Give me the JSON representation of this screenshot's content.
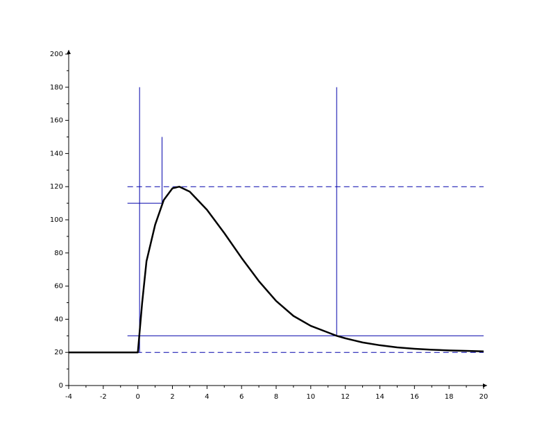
{
  "chart_data": {
    "type": "line",
    "x": [
      -4,
      -2,
      0,
      0.25,
      0.5,
      1,
      1.5,
      2,
      2.4,
      3,
      4,
      5,
      6,
      7,
      8,
      9,
      10,
      11,
      11.5,
      12,
      13,
      14,
      15,
      16,
      17,
      18,
      19,
      20
    ],
    "series": [
      {
        "color": "#000000",
        "values": [
          20,
          20,
          20,
          50,
          75,
          97,
          112,
          119,
          120,
          117,
          106,
          92,
          77,
          63,
          51,
          42,
          36,
          32,
          30,
          28.5,
          26,
          24.3,
          23,
          22.2,
          21.6,
          21.2,
          20.9,
          20.6
        ]
      }
    ],
    "xlim": [
      -4,
      20
    ],
    "xticks": [
      -4,
      -2,
      0,
      2,
      4,
      6,
      8,
      10,
      12,
      14,
      16,
      18,
      20
    ],
    "ylim": [
      0,
      200
    ],
    "yticks": [
      0,
      20,
      40,
      60,
      80,
      100,
      120,
      140,
      160,
      180,
      200
    ],
    "reference_lines": [
      {
        "x": [
          -0.6,
          20
        ],
        "y": [
          120,
          120
        ],
        "dashed": true
      },
      {
        "x": [
          -0.6,
          20
        ],
        "y": [
          20,
          20
        ],
        "dashed": true
      },
      {
        "x": [
          -0.6,
          20
        ],
        "y": [
          30,
          30
        ],
        "dashed": false
      },
      {
        "x": [
          -0.6,
          1.4
        ],
        "y": [
          110,
          110
        ],
        "dashed": false
      },
      {
        "x": [
          0.1,
          0.1
        ],
        "y": [
          20,
          180
        ],
        "dashed": false
      },
      {
        "x": [
          1.4,
          1.4
        ],
        "y": [
          110,
          150
        ],
        "dashed": false
      },
      {
        "x": [
          11.5,
          11.5
        ],
        "y": [
          30,
          180
        ],
        "dashed": false
      }
    ],
    "reference_color": "#0000aa"
  }
}
